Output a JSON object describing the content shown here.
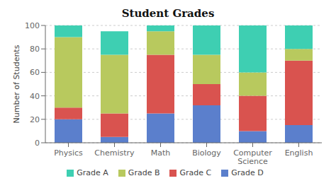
{
  "chart_data": {
    "type": "bar",
    "title": "Student Grades",
    "ylabel": "Number of Students",
    "categories": [
      "Physics",
      "Chemistry",
      "Math",
      "Biology",
      "Computer\nScience",
      "English"
    ],
    "series": [
      {
        "name": "Grade D",
        "color": "#5b7fcc",
        "values": [
          20,
          5,
          25,
          32,
          10,
          15
        ]
      },
      {
        "name": "Grade C",
        "color": "#d9534f",
        "values": [
          10,
          20,
          50,
          18,
          30,
          55
        ]
      },
      {
        "name": "Grade B",
        "color": "#b8c95e",
        "values": [
          60,
          50,
          20,
          25,
          20,
          10
        ]
      },
      {
        "name": "Grade A",
        "color": "#3ecfb2",
        "values": [
          10,
          20,
          5,
          25,
          40,
          20
        ]
      }
    ],
    "ylim": [
      0,
      100
    ],
    "yticks": [
      0,
      20,
      40,
      60,
      80,
      100
    ],
    "stacked": true,
    "grid": true,
    "legend": "bottom"
  }
}
